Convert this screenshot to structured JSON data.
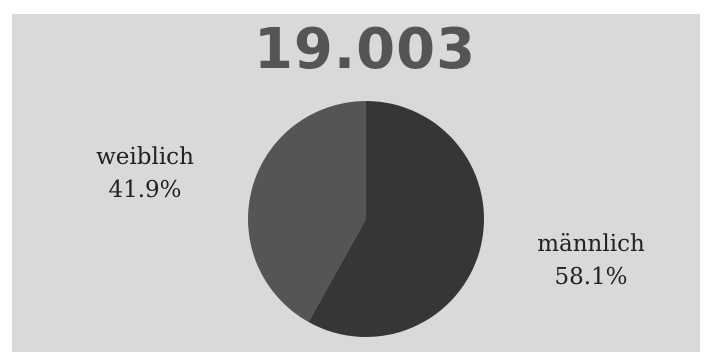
{
  "total_label": "19.003",
  "chart_data": {
    "type": "pie",
    "title": "19.003",
    "slices": [
      {
        "label": "männlich",
        "value": 58.1,
        "display": "58.1%",
        "color": "#363636"
      },
      {
        "label": "weiblich",
        "value": 41.9,
        "display": "41.9%",
        "color": "#555555"
      }
    ]
  }
}
